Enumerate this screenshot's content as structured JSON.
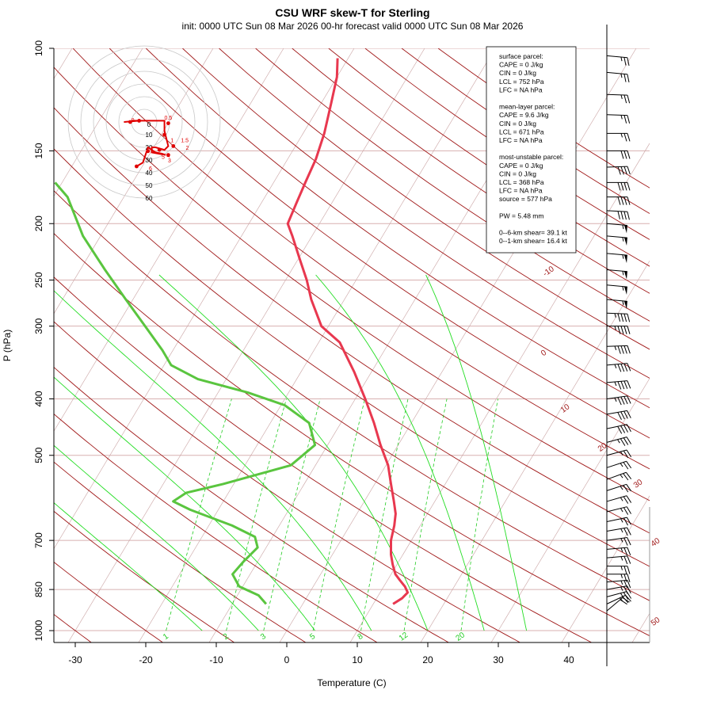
{
  "title": "CSU WRF skew-T for Sterling",
  "subtitle": "init: 0000 UTC Sun 08 Mar 2026     00-hr forecast valid 0000 UTC Sun 08 Mar 2026",
  "chart_data": {
    "type": "line",
    "xlabel": "Temperature (C)",
    "ylabel": "P (hPa)",
    "x_ticks": [
      "-30",
      "-20",
      "-10",
      "0",
      "10",
      "20",
      "30",
      "40"
    ],
    "y_ticks": [
      "100",
      "150",
      "200",
      "250",
      "300",
      "400",
      "500",
      "700",
      "850",
      "1000"
    ],
    "x_tick_values": [
      -30,
      -20,
      -10,
      0,
      10,
      20,
      30,
      40
    ],
    "y_tick_values": [
      100,
      150,
      200,
      250,
      300,
      400,
      500,
      700,
      850,
      1000
    ],
    "isotherm_labels": [
      {
        "text": "-10",
        "t": -10
      },
      {
        "text": "0",
        "t": 0
      },
      {
        "text": "10",
        "t": 10
      },
      {
        "text": "20",
        "t": 20
      },
      {
        "text": "30",
        "t": 30
      },
      {
        "text": "40",
        "t": 40
      },
      {
        "text": "50",
        "t": 50
      }
    ],
    "mixing_ratio_labels": [
      "1",
      "2",
      "3",
      "5",
      "8",
      "12",
      "20"
    ],
    "mixing_ratio_values": [
      1,
      2,
      3,
      5,
      8,
      12,
      20
    ],
    "series": [
      {
        "color": "#e8384f",
        "points": [
          [
            900,
            12.8
          ],
          [
            880,
            13.6
          ],
          [
            860,
            13.9
          ],
          [
            840,
            13.0
          ],
          [
            820,
            11.8
          ],
          [
            800,
            10.6
          ],
          [
            770,
            9.4
          ],
          [
            740,
            8.3
          ],
          [
            700,
            7.1
          ],
          [
            660,
            6.3
          ],
          [
            630,
            5.5
          ],
          [
            600,
            4.2
          ],
          [
            560,
            2.3
          ],
          [
            520,
            0.3
          ],
          [
            480,
            -2.5
          ],
          [
            440,
            -5.3
          ],
          [
            400,
            -8.6
          ],
          [
            360,
            -12.4
          ],
          [
            320,
            -17.0
          ],
          [
            300,
            -21.0
          ],
          [
            270,
            -24.7
          ],
          [
            250,
            -27.0
          ],
          [
            230,
            -29.8
          ],
          [
            210,
            -32.8
          ],
          [
            200,
            -34.5
          ],
          [
            185,
            -35.0
          ],
          [
            170,
            -35.5
          ],
          [
            155,
            -36.0
          ],
          [
            140,
            -37.0
          ],
          [
            125,
            -38.5
          ],
          [
            112,
            -40.0
          ],
          [
            104,
            -41.5
          ]
        ]
      },
      {
        "color": "#5ac53f",
        "points": [
          [
            900,
            -5.2
          ],
          [
            870,
            -7.0
          ],
          [
            840,
            -10.5
          ],
          [
            800,
            -12.5
          ],
          [
            760,
            -12.0
          ],
          [
            720,
            -11.2
          ],
          [
            690,
            -12.5
          ],
          [
            660,
            -16.7
          ],
          [
            620,
            -24.0
          ],
          [
            600,
            -27.1
          ],
          [
            580,
            -26.0
          ],
          [
            560,
            -21.5
          ],
          [
            520,
            -13.5
          ],
          [
            480,
            -11.8
          ],
          [
            440,
            -14.5
          ],
          [
            410,
            -19.5
          ],
          [
            390,
            -25.8
          ],
          [
            370,
            -34.0
          ],
          [
            350,
            -39.0
          ],
          [
            330,
            -41.5
          ],
          [
            300,
            -46.0
          ],
          [
            270,
            -51.0
          ],
          [
            240,
            -56.5
          ],
          [
            210,
            -62.5
          ],
          [
            180,
            -68.0
          ],
          [
            170,
            -71.0
          ]
        ]
      }
    ]
  },
  "info_box": {
    "lines": [
      "surface parcel:",
      "CAPE = 0 J/kg",
      "CIN = 0 J/kg",
      "LCL = 752 hPa",
      "LFC = NA hPa",
      "",
      "mean-layer parcel:",
      "CAPE = 9.6 J/kg",
      "CIN = 0 J/kg",
      "LCL = 671 hPa",
      "LFC = NA hPa",
      "",
      "most-unstable parcel:",
      "CAPE = 0 J/kg",
      "CIN = 0 J/kg",
      "LCL = 368 hPa",
      "LFC = NA hPa",
      "source = 577 hPa",
      "",
      "PW =  5.48 mm",
      "",
      "0--6-km shear= 39.1 kt",
      "0--1-km shear= 16.4 kt"
    ]
  },
  "hodograph": {
    "ring_labels": [
      "0",
      "10",
      "20",
      "30",
      "40",
      "50",
      "60"
    ],
    "point_labels": [
      "0",
      "0.5",
      "1",
      "1.5",
      "2",
      "3",
      "4",
      "5",
      "6"
    ]
  },
  "wind_barbs": {
    "levels": [
      {
        "p": 925,
        "dir": 230,
        "spd": 20
      },
      {
        "p": 900,
        "dir": 245,
        "spd": 25
      },
      {
        "p": 875,
        "dir": 255,
        "spd": 25
      },
      {
        "p": 850,
        "dir": 260,
        "spd": 25
      },
      {
        "p": 825,
        "dir": 265,
        "spd": 25
      },
      {
        "p": 800,
        "dir": 270,
        "spd": 25
      },
      {
        "p": 775,
        "dir": 270,
        "spd": 25
      },
      {
        "p": 750,
        "dir": 265,
        "spd": 25
      },
      {
        "p": 725,
        "dir": 265,
        "spd": 25
      },
      {
        "p": 700,
        "dir": 262,
        "spd": 25
      },
      {
        "p": 675,
        "dir": 260,
        "spd": 25
      },
      {
        "p": 650,
        "dir": 258,
        "spd": 25
      },
      {
        "p": 625,
        "dir": 256,
        "spd": 25
      },
      {
        "p": 600,
        "dir": 254,
        "spd": 25
      },
      {
        "p": 575,
        "dir": 252,
        "spd": 25
      },
      {
        "p": 550,
        "dir": 250,
        "spd": 25
      },
      {
        "p": 525,
        "dir": 252,
        "spd": 25
      },
      {
        "p": 500,
        "dir": 255,
        "spd": 25
      },
      {
        "p": 475,
        "dir": 255,
        "spd": 35
      },
      {
        "p": 450,
        "dir": 258,
        "spd": 40
      },
      {
        "p": 425,
        "dir": 260,
        "spd": 40
      },
      {
        "p": 400,
        "dir": 262,
        "spd": 45
      },
      {
        "p": 375,
        "dir": 265,
        "spd": 45
      },
      {
        "p": 350,
        "dir": 265,
        "spd": 45
      },
      {
        "p": 325,
        "dir": 268,
        "spd": 45
      },
      {
        "p": 300,
        "dir": 270,
        "spd": 45
      },
      {
        "p": 285,
        "dir": 272,
        "spd": 45
      },
      {
        "p": 270,
        "dir": 275,
        "spd": 55
      },
      {
        "p": 255,
        "dir": 275,
        "spd": 55
      },
      {
        "p": 240,
        "dir": 275,
        "spd": 55
      },
      {
        "p": 225,
        "dir": 275,
        "spd": 55
      },
      {
        "p": 210,
        "dir": 275,
        "spd": 55
      },
      {
        "p": 200,
        "dir": 275,
        "spd": 55
      },
      {
        "p": 190,
        "dir": 273,
        "spd": 40
      },
      {
        "p": 180,
        "dir": 270,
        "spd": 40
      },
      {
        "p": 170,
        "dir": 270,
        "spd": 40
      },
      {
        "p": 160,
        "dir": 268,
        "spd": 40
      },
      {
        "p": 150,
        "dir": 270,
        "spd": 30
      },
      {
        "p": 140,
        "dir": 270,
        "spd": 25
      },
      {
        "p": 130,
        "dir": 272,
        "spd": 25
      },
      {
        "p": 120,
        "dir": 272,
        "spd": 25
      },
      {
        "p": 110,
        "dir": 275,
        "spd": 25
      },
      {
        "p": 103,
        "dir": 275,
        "spd": 25
      }
    ]
  },
  "colors": {
    "temperature": "#e8384f",
    "dewpoint": "#5ac53f",
    "dry_adiabat": "#a01818",
    "isotherm": "#c9a3a3",
    "moist_adiabat": "#22dd22",
    "mixing_ratio": "#22cc22",
    "isobar": "#d8b0b0",
    "hodo_ring": "#c8c8c8",
    "hodo_trace": "#e00000"
  }
}
